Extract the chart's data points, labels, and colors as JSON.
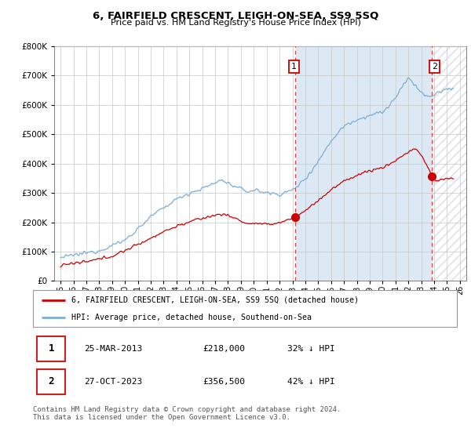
{
  "title": "6, FAIRFIELD CRESCENT, LEIGH-ON-SEA, SS9 5SQ",
  "subtitle": "Price paid vs. HM Land Registry's House Price Index (HPI)",
  "legend_line1": "6, FAIRFIELD CRESCENT, LEIGH-ON-SEA, SS9 5SQ (detached house)",
  "legend_line2": "HPI: Average price, detached house, Southend-on-Sea",
  "annotation1_date": "25-MAR-2013",
  "annotation1_price": "£218,000",
  "annotation1_hpi": "32% ↓ HPI",
  "annotation2_date": "27-OCT-2023",
  "annotation2_price": "£356,500",
  "annotation2_hpi": "42% ↓ HPI",
  "footnote": "Contains HM Land Registry data © Crown copyright and database right 2024.\nThis data is licensed under the Open Government Licence v3.0.",
  "ylim": [
    0,
    800000
  ],
  "yticks": [
    0,
    100000,
    200000,
    300000,
    400000,
    500000,
    600000,
    700000,
    800000
  ],
  "red_color": "#cc0000",
  "blue_color": "#7aaed6",
  "blue_fill_color": "#dce9f5",
  "hatch_color": "#bbbbcc",
  "marker1_x_year": 2013.23,
  "marker1_y": 218000,
  "marker2_x_year": 2023.83,
  "marker2_y": 356500,
  "vline1_x": 2013.23,
  "vline2_x": 2023.83,
  "xmin": 1995,
  "xmax": 2026
}
